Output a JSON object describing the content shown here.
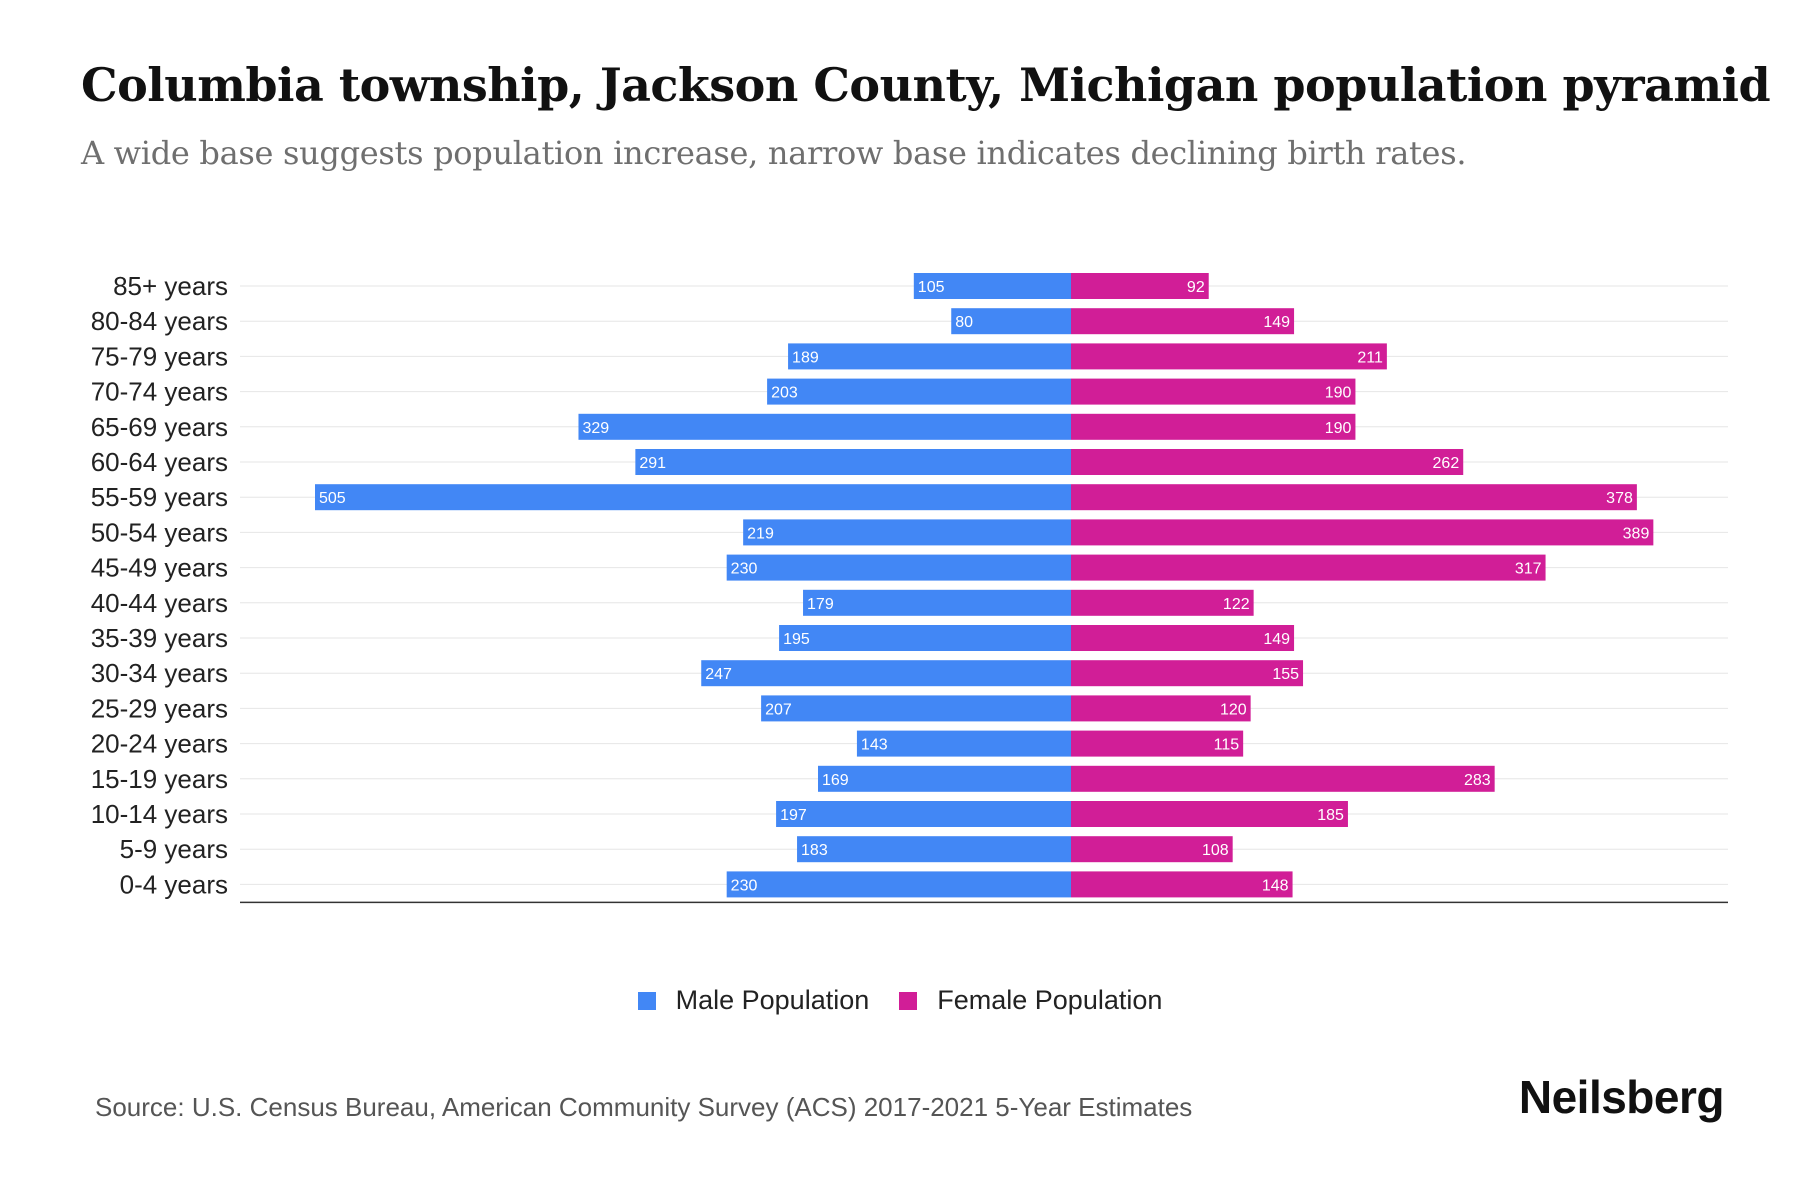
{
  "header": {
    "title": "Columbia township, Jackson County, Michigan population pyramid",
    "subtitle": "A wide base suggests population increase, narrow base indicates declining birth rates."
  },
  "colors": {
    "male": "#4287f5",
    "female": "#d11e97",
    "grid": "#e6e6e6",
    "axis": "#333333"
  },
  "chart_data": {
    "type": "bar",
    "orientation": "horizontal-pyramid",
    "title": "Columbia township, Jackson County, Michigan population pyramid",
    "categories": [
      "85+ years",
      "80-84 years",
      "75-79 years",
      "70-74 years",
      "65-69 years",
      "60-64 years",
      "55-59 years",
      "50-54 years",
      "45-49 years",
      "40-44 years",
      "35-39 years",
      "30-34 years",
      "25-29 years",
      "20-24 years",
      "15-19 years",
      "10-14 years",
      "5-9 years",
      "0-4 years"
    ],
    "series": [
      {
        "name": "Male Population",
        "values": [
          105,
          80,
          189,
          203,
          329,
          291,
          505,
          219,
          230,
          179,
          195,
          247,
          207,
          143,
          169,
          197,
          183,
          230
        ]
      },
      {
        "name": "Female Population",
        "values": [
          92,
          149,
          211,
          190,
          190,
          262,
          378,
          389,
          317,
          122,
          149,
          155,
          120,
          115,
          283,
          185,
          108,
          148
        ]
      }
    ],
    "xlim": [
      -555,
      440
    ],
    "xlabel": "",
    "ylabel": "",
    "grid": true,
    "legend": "bottom-center"
  },
  "legend": {
    "male_label": "Male Population",
    "female_label": "Female Population"
  },
  "footer": {
    "source": "Source: U.S. Census Bureau, American Community Survey (ACS) 2017-2021 5-Year Estimates",
    "brand": "Neilsberg"
  }
}
